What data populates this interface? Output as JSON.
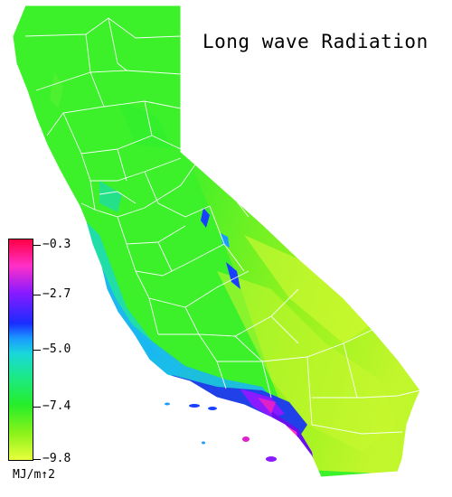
{
  "title": "Long wave Radiation",
  "legend": {
    "ticks": [
      "−0.3",
      "−2.7",
      "−5.0",
      "−7.4",
      "−9.8"
    ],
    "units": "MJ/m↑2",
    "colors": {
      "high": "#ff0044",
      "mid_high": "#8a1aff",
      "mid": "#1a9cff",
      "mid_low": "#26ee2a",
      "low": "#e8ff3c"
    }
  }
}
